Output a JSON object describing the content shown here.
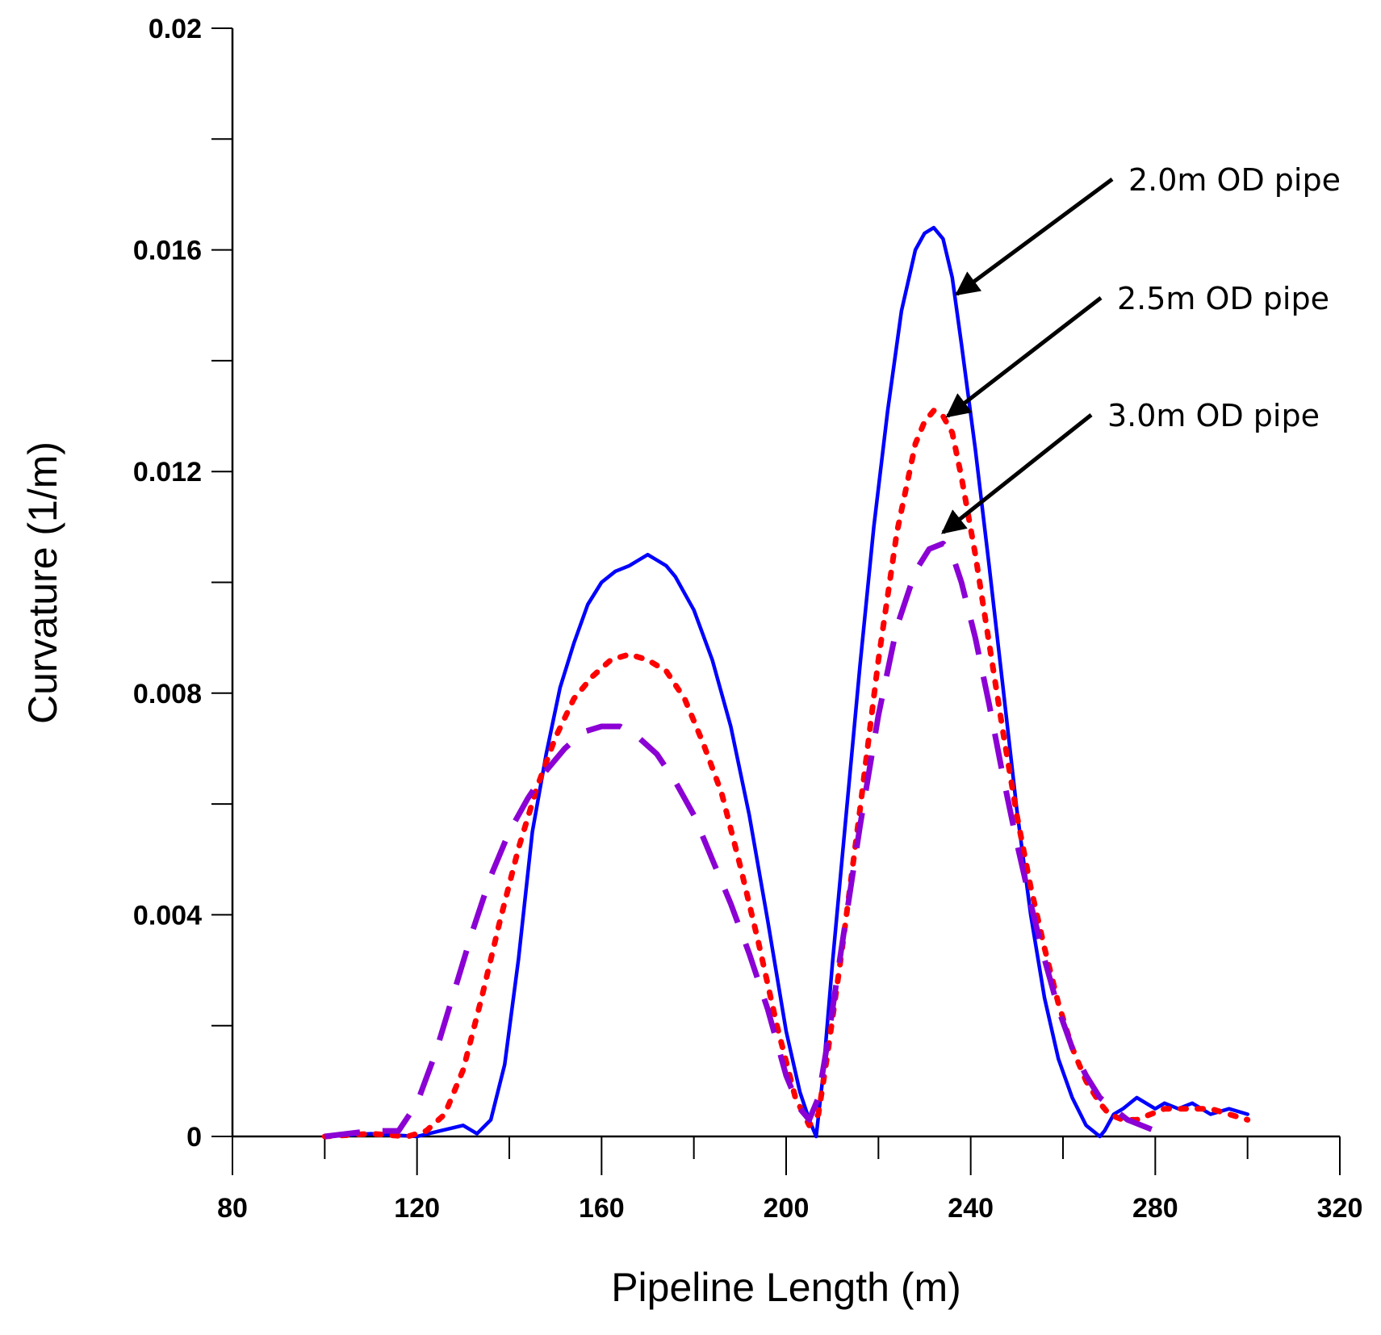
{
  "chart_data": {
    "type": "line",
    "title": "",
    "xlabel": "Pipeline Length (m)",
    "ylabel": "Curvature (1/m)",
    "xlim": [
      80,
      320
    ],
    "ylim": [
      0,
      0.02
    ],
    "x_ticks": [
      80,
      120,
      160,
      200,
      240,
      280,
      320
    ],
    "x_tick_labels": [
      "80",
      "120",
      "160",
      "200",
      "240",
      "280",
      "320"
    ],
    "x_minor_ticks": [
      100,
      140,
      180,
      220,
      260,
      300
    ],
    "y_ticks": [
      0,
      0.004,
      0.008,
      0.012,
      0.016,
      0.02
    ],
    "y_tick_labels": [
      "0",
      "0.004",
      "0.008",
      "0.012",
      "0.016",
      "0.02"
    ],
    "y_minor_ticks": [
      0.002,
      0.006,
      0.01,
      0.014,
      0.018
    ],
    "grid": false,
    "series": [
      {
        "name": "2.0m OD pipe",
        "color": "#0000ff",
        "style": "solid",
        "x": [
          100,
          110,
          120,
          125,
          130,
          133,
          136,
          139,
          142,
          145,
          148,
          151,
          154,
          157,
          160,
          163,
          166,
          168,
          170,
          172,
          174,
          176,
          178,
          180,
          184,
          188,
          192,
          196,
          200,
          203,
          205,
          206.5,
          208,
          210,
          213,
          216,
          219,
          222,
          225,
          228,
          230,
          232,
          234,
          236,
          238,
          241,
          244,
          247,
          250,
          253,
          256,
          259,
          262,
          265,
          268,
          269,
          271,
          273,
          276,
          278,
          280,
          282,
          285,
          288,
          292,
          296,
          300
        ],
        "y": [
          0.0,
          5e-05,
          0.0,
          0.0001,
          0.0002,
          5e-05,
          0.0003,
          0.0013,
          0.0032,
          0.0055,
          0.0069,
          0.0081,
          0.0089,
          0.0096,
          0.01,
          0.0102,
          0.0103,
          0.0104,
          0.0105,
          0.0104,
          0.0103,
          0.0101,
          0.0098,
          0.0095,
          0.0086,
          0.0074,
          0.0058,
          0.0039,
          0.0019,
          0.0008,
          0.0003,
          0.0,
          0.0011,
          0.0031,
          0.0058,
          0.0085,
          0.011,
          0.0131,
          0.0149,
          0.016,
          0.0163,
          0.0164,
          0.0162,
          0.0155,
          0.0143,
          0.0124,
          0.0103,
          0.0081,
          0.0059,
          0.004,
          0.0025,
          0.0014,
          0.0007,
          0.0002,
          0.0,
          0.0001,
          0.0004,
          0.0005,
          0.0007,
          0.0006,
          0.0005,
          0.0006,
          0.0005,
          0.0006,
          0.0004,
          0.0005,
          0.0004
        ]
      },
      {
        "name": "2.5m OD pipe",
        "color": "#ff0000",
        "style": "dotted",
        "x": [
          100,
          110,
          118,
          122,
          126,
          130,
          134,
          138,
          142,
          146,
          150,
          154,
          158,
          162,
          166,
          170,
          174,
          178,
          182,
          186,
          190,
          194,
          198,
          202,
          205,
          207,
          209,
          212,
          216,
          220,
          224,
          228,
          230,
          232,
          234,
          236,
          238,
          241,
          244,
          247,
          250,
          253,
          256,
          259,
          262,
          265,
          268,
          270,
          273,
          276,
          279,
          282,
          285,
          288,
          292,
          296,
          300
        ],
        "y": [
          0.0,
          5e-05,
          0.0,
          0.0001,
          0.0004,
          0.0012,
          0.0025,
          0.0039,
          0.0052,
          0.0063,
          0.0072,
          0.0079,
          0.0083,
          0.0086,
          0.0087,
          0.0086,
          0.0084,
          0.0079,
          0.0071,
          0.0062,
          0.0049,
          0.0035,
          0.002,
          0.0007,
          0.0002,
          0.0004,
          0.0015,
          0.0033,
          0.0059,
          0.0086,
          0.0109,
          0.0125,
          0.0129,
          0.0131,
          0.013,
          0.0127,
          0.0119,
          0.0105,
          0.0089,
          0.0073,
          0.0058,
          0.0045,
          0.0034,
          0.0024,
          0.0016,
          0.001,
          0.0006,
          0.0004,
          0.0003,
          0.0003,
          0.0004,
          0.0005,
          0.0005,
          0.0005,
          0.0005,
          0.0004,
          0.0003
        ]
      },
      {
        "name": "3.0m OD pipe",
        "color": "#8b00d4",
        "style": "dashed",
        "x": [
          100,
          110,
          116,
          120,
          124,
          128,
          132,
          136,
          140,
          144,
          148,
          152,
          156,
          160,
          164,
          168,
          172,
          176,
          180,
          184,
          188,
          192,
          196,
          200,
          203,
          205,
          207,
          209,
          212,
          216,
          220,
          224,
          228,
          231,
          234,
          236,
          238,
          241,
          244,
          247,
          250,
          253,
          256,
          259,
          262,
          265,
          268,
          271,
          274,
          277,
          280,
          283
        ],
        "y": [
          0.0,
          0.0001,
          0.0001,
          0.0006,
          0.0015,
          0.0026,
          0.0037,
          0.0047,
          0.0055,
          0.0061,
          0.0066,
          0.007,
          0.0073,
          0.0074,
          0.0074,
          0.0072,
          0.0069,
          0.0064,
          0.0058,
          0.005,
          0.0042,
          0.0033,
          0.0023,
          0.0011,
          0.0005,
          0.0003,
          0.0007,
          0.0017,
          0.0034,
          0.0056,
          0.0076,
          0.0092,
          0.0102,
          0.0106,
          0.0107,
          0.0105,
          0.01,
          0.009,
          0.0078,
          0.0065,
          0.0053,
          0.0042,
          0.0032,
          0.0023,
          0.0016,
          0.0011,
          0.0007,
          0.0005,
          0.0003,
          0.0002,
          0.0001,
          0.0
        ]
      }
    ],
    "annotations": [
      {
        "text": "2.0m OD pipe",
        "series": "2.0m OD pipe",
        "target": [
          237,
          0.0152
        ]
      },
      {
        "text": "2.5m OD pipe",
        "series": "2.5m OD pipe",
        "target": [
          235,
          0.013
        ]
      },
      {
        "text": "3.0m OD pipe",
        "series": "3.0m OD pipe",
        "target": [
          234,
          0.0109
        ]
      }
    ]
  }
}
